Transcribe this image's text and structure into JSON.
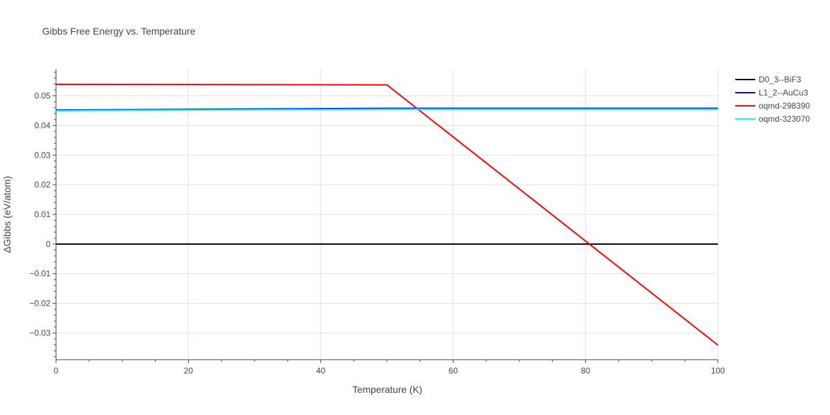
{
  "chart_data": {
    "type": "line",
    "title": "Gibbs Free Energy vs. Temperature",
    "xlabel": "Temperature (K)",
    "ylabel": "ΔGibbs (eV/atom)",
    "xlim": [
      0,
      100
    ],
    "ylim": [
      -0.039,
      0.059
    ],
    "x_ticks": [
      0,
      20,
      40,
      60,
      80,
      100
    ],
    "x_tick_labels": [
      "0",
      "20",
      "40",
      "60",
      "80",
      "100"
    ],
    "y_ticks": [
      -0.03,
      -0.02,
      -0.01,
      0,
      0.01,
      0.02,
      0.03,
      0.04,
      0.05
    ],
    "y_tick_labels": [
      "−0.03",
      "−0.02",
      "−0.01",
      "0",
      "0.01",
      "0.02",
      "0.03",
      "0.04",
      "0.05"
    ],
    "grid": true,
    "legend_position": "top-right",
    "series": [
      {
        "name": "D0_3--BiF3",
        "color": "#000000",
        "x": [
          0,
          100
        ],
        "y": [
          0,
          0
        ]
      },
      {
        "name": "L1_2--AuCu3",
        "color": "#0000ff",
        "x": [
          0,
          50,
          100
        ],
        "y": [
          0.0452,
          0.0458,
          0.0458
        ]
      },
      {
        "name": "oqmd-298390",
        "color": "#ff0000",
        "x": [
          0,
          50,
          100
        ],
        "y": [
          0.0539,
          0.0537,
          -0.0341
        ]
      },
      {
        "name": "oqmd-323070",
        "color": "#00ffff",
        "x": [
          0,
          50,
          100
        ],
        "y": [
          0.045,
          0.0455,
          0.0455
        ]
      }
    ]
  }
}
